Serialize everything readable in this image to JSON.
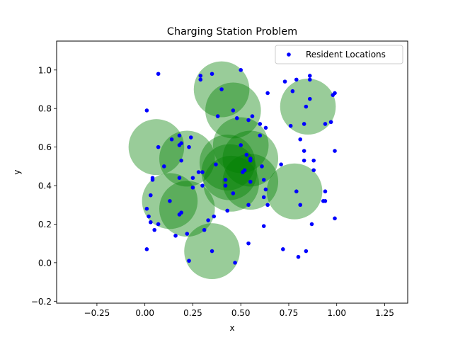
{
  "chart_data": {
    "type": "scatter",
    "title": "Charging Station Problem",
    "xlabel": "x",
    "ylabel": "y",
    "xlim": [
      -0.46,
      1.37
    ],
    "ylim": [
      -0.21,
      1.15
    ],
    "xticks": [
      -0.25,
      0.0,
      0.25,
      0.5,
      0.75,
      1.0,
      1.25
    ],
    "xtick_labels": [
      "−0.25",
      "0.00",
      "0.25",
      "0.50",
      "0.75",
      "1.00",
      "1.25"
    ],
    "yticks": [
      -0.2,
      0.0,
      0.2,
      0.4,
      0.6,
      0.8,
      1.0
    ],
    "ytick_labels": [
      "−0.2",
      "0.0",
      "0.2",
      "0.4",
      "0.6",
      "0.8",
      "1.0"
    ],
    "legend": {
      "position": "top-right",
      "entries": [
        "Resident Locations"
      ]
    },
    "colors": {
      "points": "#0000ff",
      "circles": "#008000",
      "circle_opacity": 0.4
    },
    "series": [
      {
        "name": "Resident Locations",
        "points": [
          [
            0.07,
            0.98
          ],
          [
            0.35,
            0.98
          ],
          [
            0.5,
            1.0
          ],
          [
            0.86,
            0.97
          ],
          [
            0.29,
            0.97
          ],
          [
            0.29,
            0.95
          ],
          [
            0.86,
            0.95
          ],
          [
            0.79,
            0.95
          ],
          [
            0.73,
            0.94
          ],
          [
            0.98,
            0.87
          ],
          [
            0.99,
            0.88
          ],
          [
            0.77,
            0.89
          ],
          [
            0.4,
            0.9
          ],
          [
            0.64,
            0.88
          ],
          [
            0.86,
            0.85
          ],
          [
            0.84,
            0.81
          ],
          [
            0.46,
            0.79
          ],
          [
            0.01,
            0.79
          ],
          [
            0.48,
            0.75
          ],
          [
            0.38,
            0.76
          ],
          [
            0.56,
            0.76
          ],
          [
            0.54,
            0.74
          ],
          [
            0.6,
            0.72
          ],
          [
            0.63,
            0.7
          ],
          [
            0.83,
            0.72
          ],
          [
            0.94,
            0.72
          ],
          [
            0.97,
            0.73
          ],
          [
            0.76,
            0.71
          ],
          [
            0.81,
            0.64
          ],
          [
            0.6,
            0.66
          ],
          [
            0.18,
            0.66
          ],
          [
            0.24,
            0.65
          ],
          [
            0.14,
            0.64
          ],
          [
            0.19,
            0.62
          ],
          [
            0.18,
            0.61
          ],
          [
            0.23,
            0.6
          ],
          [
            0.07,
            0.6
          ],
          [
            0.5,
            0.61
          ],
          [
            0.99,
            0.58
          ],
          [
            0.83,
            0.58
          ],
          [
            0.53,
            0.56
          ],
          [
            0.55,
            0.54
          ],
          [
            0.55,
            0.53
          ],
          [
            0.19,
            0.53
          ],
          [
            0.83,
            0.53
          ],
          [
            0.88,
            0.53
          ],
          [
            0.71,
            0.51
          ],
          [
            0.61,
            0.5
          ],
          [
            0.37,
            0.51
          ],
          [
            0.1,
            0.5
          ],
          [
            0.88,
            0.48
          ],
          [
            0.52,
            0.48
          ],
          [
            0.51,
            0.47
          ],
          [
            0.3,
            0.47
          ],
          [
            0.28,
            0.47
          ],
          [
            0.04,
            0.44
          ],
          [
            0.04,
            0.43
          ],
          [
            0.18,
            0.44
          ],
          [
            0.25,
            0.44
          ],
          [
            0.42,
            0.43
          ],
          [
            0.62,
            0.43
          ],
          [
            0.55,
            0.42
          ],
          [
            0.42,
            0.4
          ],
          [
            0.3,
            0.4
          ],
          [
            0.25,
            0.39
          ],
          [
            0.63,
            0.38
          ],
          [
            0.94,
            0.37
          ],
          [
            0.79,
            0.37
          ],
          [
            0.03,
            0.35
          ],
          [
            0.46,
            0.36
          ],
          [
            0.62,
            0.34
          ],
          [
            0.13,
            0.32
          ],
          [
            0.93,
            0.32
          ],
          [
            0.94,
            0.32
          ],
          [
            0.54,
            0.3
          ],
          [
            0.64,
            0.3
          ],
          [
            0.81,
            0.3
          ],
          [
            0.01,
            0.28
          ],
          [
            0.43,
            0.27
          ],
          [
            0.18,
            0.25
          ],
          [
            0.19,
            0.26
          ],
          [
            0.02,
            0.24
          ],
          [
            0.36,
            0.24
          ],
          [
            0.33,
            0.22
          ],
          [
            0.03,
            0.21
          ],
          [
            0.87,
            0.2
          ],
          [
            0.07,
            0.2
          ],
          [
            0.99,
            0.23
          ],
          [
            0.62,
            0.19
          ],
          [
            0.05,
            0.17
          ],
          [
            0.31,
            0.17
          ],
          [
            0.16,
            0.14
          ],
          [
            0.22,
            0.15
          ],
          [
            0.54,
            0.1
          ],
          [
            0.01,
            0.07
          ],
          [
            0.72,
            0.07
          ],
          [
            0.84,
            0.06
          ],
          [
            0.35,
            0.06
          ],
          [
            0.8,
            0.03
          ],
          [
            0.23,
            0.01
          ],
          [
            0.47,
            0.0
          ]
        ]
      }
    ],
    "coverage_circles": {
      "radius": 0.145,
      "centers": [
        [
          0.4,
          0.9
        ],
        [
          0.85,
          0.81
        ],
        [
          0.46,
          0.79
        ],
        [
          0.06,
          0.6
        ],
        [
          0.22,
          0.54
        ],
        [
          0.5,
          0.61
        ],
        [
          0.55,
          0.54
        ],
        [
          0.43,
          0.52
        ],
        [
          0.44,
          0.47
        ],
        [
          0.45,
          0.41
        ],
        [
          0.55,
          0.42
        ],
        [
          0.78,
          0.37
        ],
        [
          0.13,
          0.32
        ],
        [
          0.22,
          0.28
        ],
        [
          0.35,
          0.06
        ]
      ]
    }
  }
}
